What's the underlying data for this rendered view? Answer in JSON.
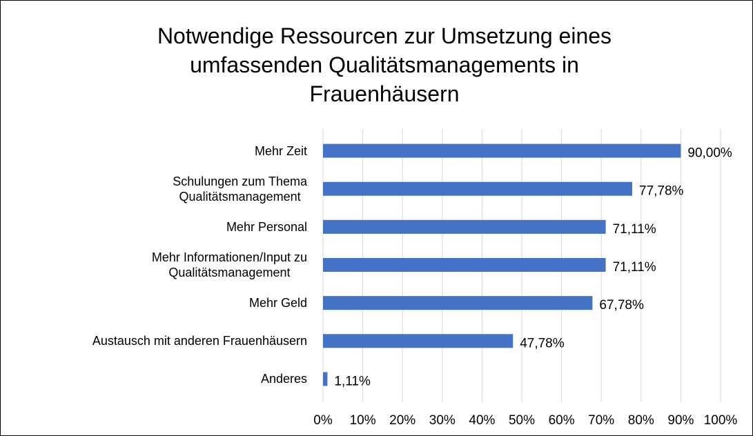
{
  "chart_data": {
    "type": "bar",
    "orientation": "horizontal",
    "title": "Notwendige Ressourcen zur Umsetzung eines\numfassenden Qualitätsmanagements in\nFrauenhäusern",
    "categories": [
      "Mehr Zeit",
      "Schulungen zum Thema\nQualitätsmanagement",
      "Mehr Personal",
      "Mehr Informationen/Input zu\nQualitätsmanagement",
      "Mehr Geld",
      "Austausch mit anderen Frauenhäusern",
      "Anderes"
    ],
    "values": [
      90,
      77.78,
      71.11,
      71.11,
      67.78,
      47.78,
      1.11
    ],
    "value_labels": [
      "90,00%",
      "77,78%",
      "71,11%",
      "71,11%",
      "67,78%",
      "47,78%",
      "1,11%"
    ],
    "color": "#4472c4",
    "xlim": [
      0,
      100
    ],
    "xticks": [
      {
        "value": 0,
        "label": "0%"
      },
      {
        "value": 10,
        "label": "10%"
      },
      {
        "value": 20,
        "label": "20%"
      },
      {
        "value": 30,
        "label": "30%"
      },
      {
        "value": 40,
        "label": "40%"
      },
      {
        "value": 50,
        "label": "50%"
      },
      {
        "value": 60,
        "label": "60%"
      },
      {
        "value": 70,
        "label": "70%"
      },
      {
        "value": 80,
        "label": "80%"
      },
      {
        "value": 90,
        "label": "90%"
      },
      {
        "value": 100,
        "label": "100%"
      }
    ],
    "grid": true
  }
}
